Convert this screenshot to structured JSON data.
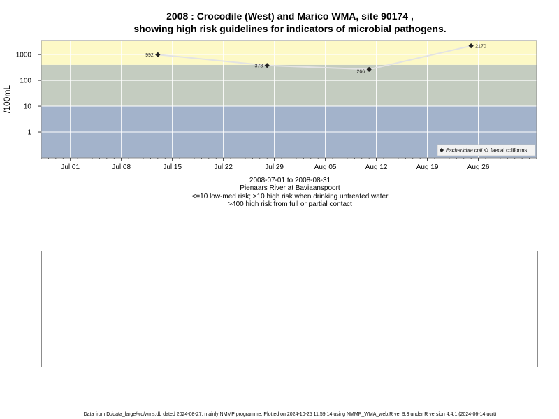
{
  "title_line1": "2008 : Crocodile (West) and Marico WMA, site 90174 ,",
  "title_line2": "showing high risk guidelines for indicators of microbial pathogens.",
  "caption": {
    "line1": "2008-07-01 to 2008-08-31",
    "line2": "Pienaars River at Baviaanspoort",
    "line3": "<=10 low-med risk; >10 high risk when drinking untreated water",
    "line4": ">400 high risk from full or partial contact"
  },
  "footer": "Data from D:/data_large/wq/wms.db dated 2024-08-27, mainly NMMP programme. Plotted on 2024-10-25 11:59:14 using NMMP_WMA_web.R ver 9.3 under R version 4.4.1 (2024-06-14 ucrt)",
  "colors": {
    "band_low": "#a3b3cb",
    "band_high": "#c4ccc0",
    "band_contact": "#fdf9c6",
    "grid": "#ffffff",
    "series_line": "#e3e3e3",
    "marker": "#222222"
  },
  "chart_data": {
    "type": "line",
    "y_scale": "log10",
    "ylabel": "/100mL",
    "ylim": [
      0.1,
      3500
    ],
    "y_ticks": [
      1,
      10,
      100,
      1000
    ],
    "y_tick_labels": [
      "1",
      "10",
      "100",
      "1000"
    ],
    "xlim": [
      "2008-06-27",
      "2008-09-03"
    ],
    "x_ticks": [
      "2008-07-01",
      "2008-07-08",
      "2008-07-15",
      "2008-07-22",
      "2008-07-29",
      "2008-08-05",
      "2008-08-12",
      "2008-08-19",
      "2008-08-26"
    ],
    "x_tick_labels": [
      "Jul 01",
      "Jul 08",
      "Jul 15",
      "Jul 22",
      "Jul 29",
      "Aug 05",
      "Aug 12",
      "Aug 19",
      "Aug 26"
    ],
    "thresholds": [
      10,
      400
    ],
    "grid": true,
    "legend": {
      "position": "bottom-right",
      "entries": [
        {
          "label": "Escherichia coli",
          "marker": "filled-diamond",
          "italic": true
        },
        {
          "label": "faecal coliforms",
          "marker": "open-diamond",
          "italic": false
        }
      ]
    },
    "series": [
      {
        "name": "Escherichia coli",
        "points": [
          {
            "x": "2008-07-13",
            "y": 992,
            "label": "992"
          },
          {
            "x": "2008-07-28",
            "y": 378,
            "label": "378"
          },
          {
            "x": "2008-08-11",
            "y": 266,
            "label": "266"
          },
          {
            "x": "2008-08-25",
            "y": 2170,
            "label": "2170"
          }
        ]
      }
    ]
  }
}
